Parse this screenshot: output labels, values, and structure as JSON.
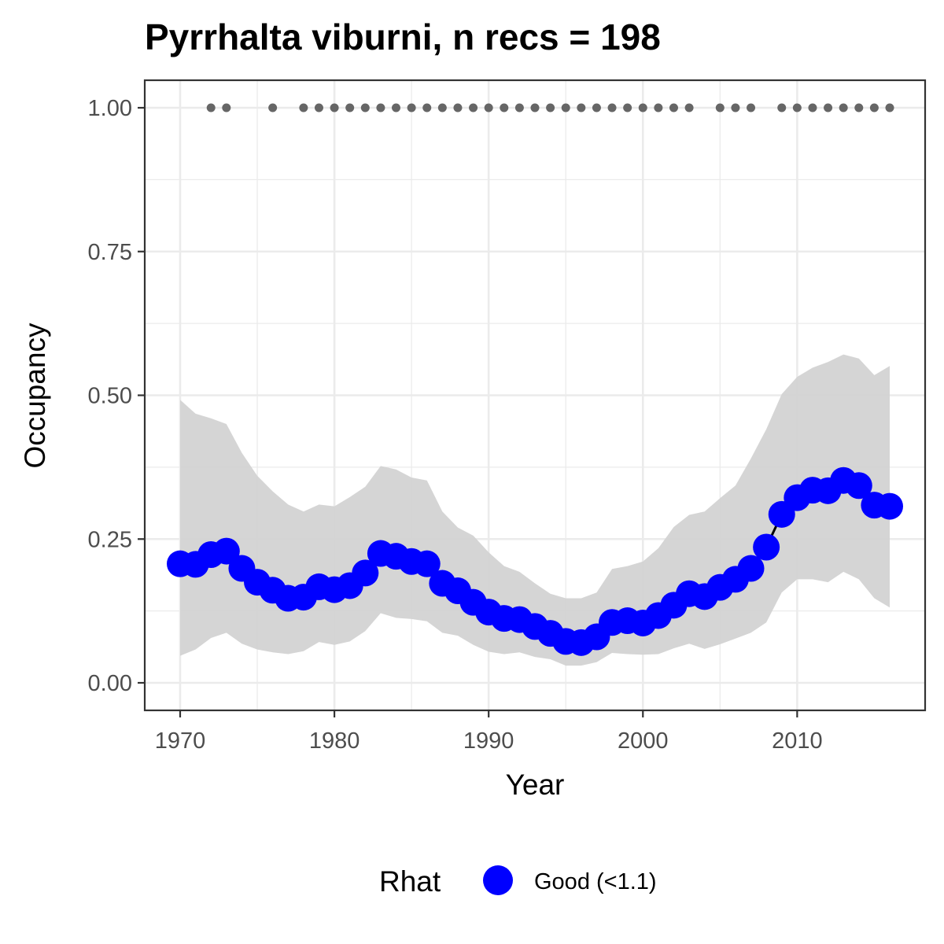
{
  "chart_data": {
    "type": "line",
    "title": "Pyrrhalta viburni, n recs = 198",
    "xlabel": "Year",
    "ylabel": "Occupancy",
    "xlim": [
      1970,
      2016
    ],
    "ylim": [
      0,
      1
    ],
    "x_ticks": [
      "1970",
      "1980",
      "1990",
      "2000",
      "2010"
    ],
    "y_ticks": [
      "0.00",
      "0.25",
      "0.50",
      "0.75",
      "1.00"
    ],
    "grid": true,
    "legend": {
      "position": "bottom",
      "title": "Rhat",
      "entries": [
        {
          "label": "Good (<1.1)",
          "color": "#0000ff"
        }
      ]
    },
    "colors": {
      "series": "#0000ff",
      "ribbon": "#d3d3d3",
      "records": "#666666",
      "line": "#000000"
    },
    "series": [
      {
        "x": [
          1970,
          1971,
          1972,
          1973,
          1974,
          1975,
          1976,
          1977,
          1978,
          1979,
          1980,
          1981,
          1982,
          1983,
          1984,
          1985,
          1986,
          1987,
          1988,
          1989,
          1990,
          1991,
          1992,
          1993,
          1994,
          1995,
          1996,
          1997,
          1998,
          1999,
          2000,
          2001,
          2002,
          2003,
          2004,
          2005,
          2006,
          2007,
          2008,
          2009,
          2010,
          2011,
          2012,
          2013,
          2014,
          2015,
          2016
        ],
        "y": [
          0.207,
          0.206,
          0.223,
          0.229,
          0.199,
          0.175,
          0.161,
          0.147,
          0.149,
          0.167,
          0.162,
          0.169,
          0.191,
          0.225,
          0.22,
          0.211,
          0.207,
          0.173,
          0.16,
          0.14,
          0.123,
          0.112,
          0.11,
          0.098,
          0.086,
          0.072,
          0.07,
          0.08,
          0.105,
          0.108,
          0.104,
          0.117,
          0.135,
          0.155,
          0.15,
          0.166,
          0.18,
          0.199,
          0.236,
          0.293,
          0.322,
          0.335,
          0.334,
          0.352,
          0.343,
          0.309,
          0.307
        ],
        "lower": [
          0.047,
          0.058,
          0.078,
          0.087,
          0.068,
          0.058,
          0.053,
          0.05,
          0.055,
          0.071,
          0.066,
          0.072,
          0.09,
          0.121,
          0.113,
          0.111,
          0.107,
          0.087,
          0.082,
          0.066,
          0.054,
          0.05,
          0.053,
          0.045,
          0.041,
          0.03,
          0.03,
          0.036,
          0.052,
          0.05,
          0.049,
          0.05,
          0.06,
          0.068,
          0.059,
          0.067,
          0.077,
          0.087,
          0.105,
          0.157,
          0.18,
          0.18,
          0.175,
          0.193,
          0.18,
          0.147,
          0.131
        ],
        "upper": [
          0.492,
          0.468,
          0.46,
          0.45,
          0.4,
          0.36,
          0.333,
          0.31,
          0.298,
          0.31,
          0.307,
          0.323,
          0.341,
          0.377,
          0.371,
          0.357,
          0.352,
          0.298,
          0.27,
          0.256,
          0.227,
          0.203,
          0.193,
          0.173,
          0.155,
          0.147,
          0.147,
          0.157,
          0.198,
          0.203,
          0.211,
          0.234,
          0.271,
          0.292,
          0.298,
          0.321,
          0.343,
          0.39,
          0.441,
          0.502,
          0.532,
          0.548,
          0.558,
          0.571,
          0.564,
          0.535,
          0.551
        ]
      }
    ],
    "record_years": [
      1972,
      1973,
      1976,
      1978,
      1979,
      1980,
      1981,
      1982,
      1983,
      1984,
      1985,
      1986,
      1987,
      1988,
      1989,
      1990,
      1991,
      1992,
      1993,
      1994,
      1995,
      1996,
      1997,
      1998,
      1999,
      2000,
      2001,
      2002,
      2003,
      2005,
      2006,
      2007,
      2009,
      2010,
      2011,
      2012,
      2013,
      2014,
      2015,
      2016
    ],
    "record_y": 1.0
  }
}
